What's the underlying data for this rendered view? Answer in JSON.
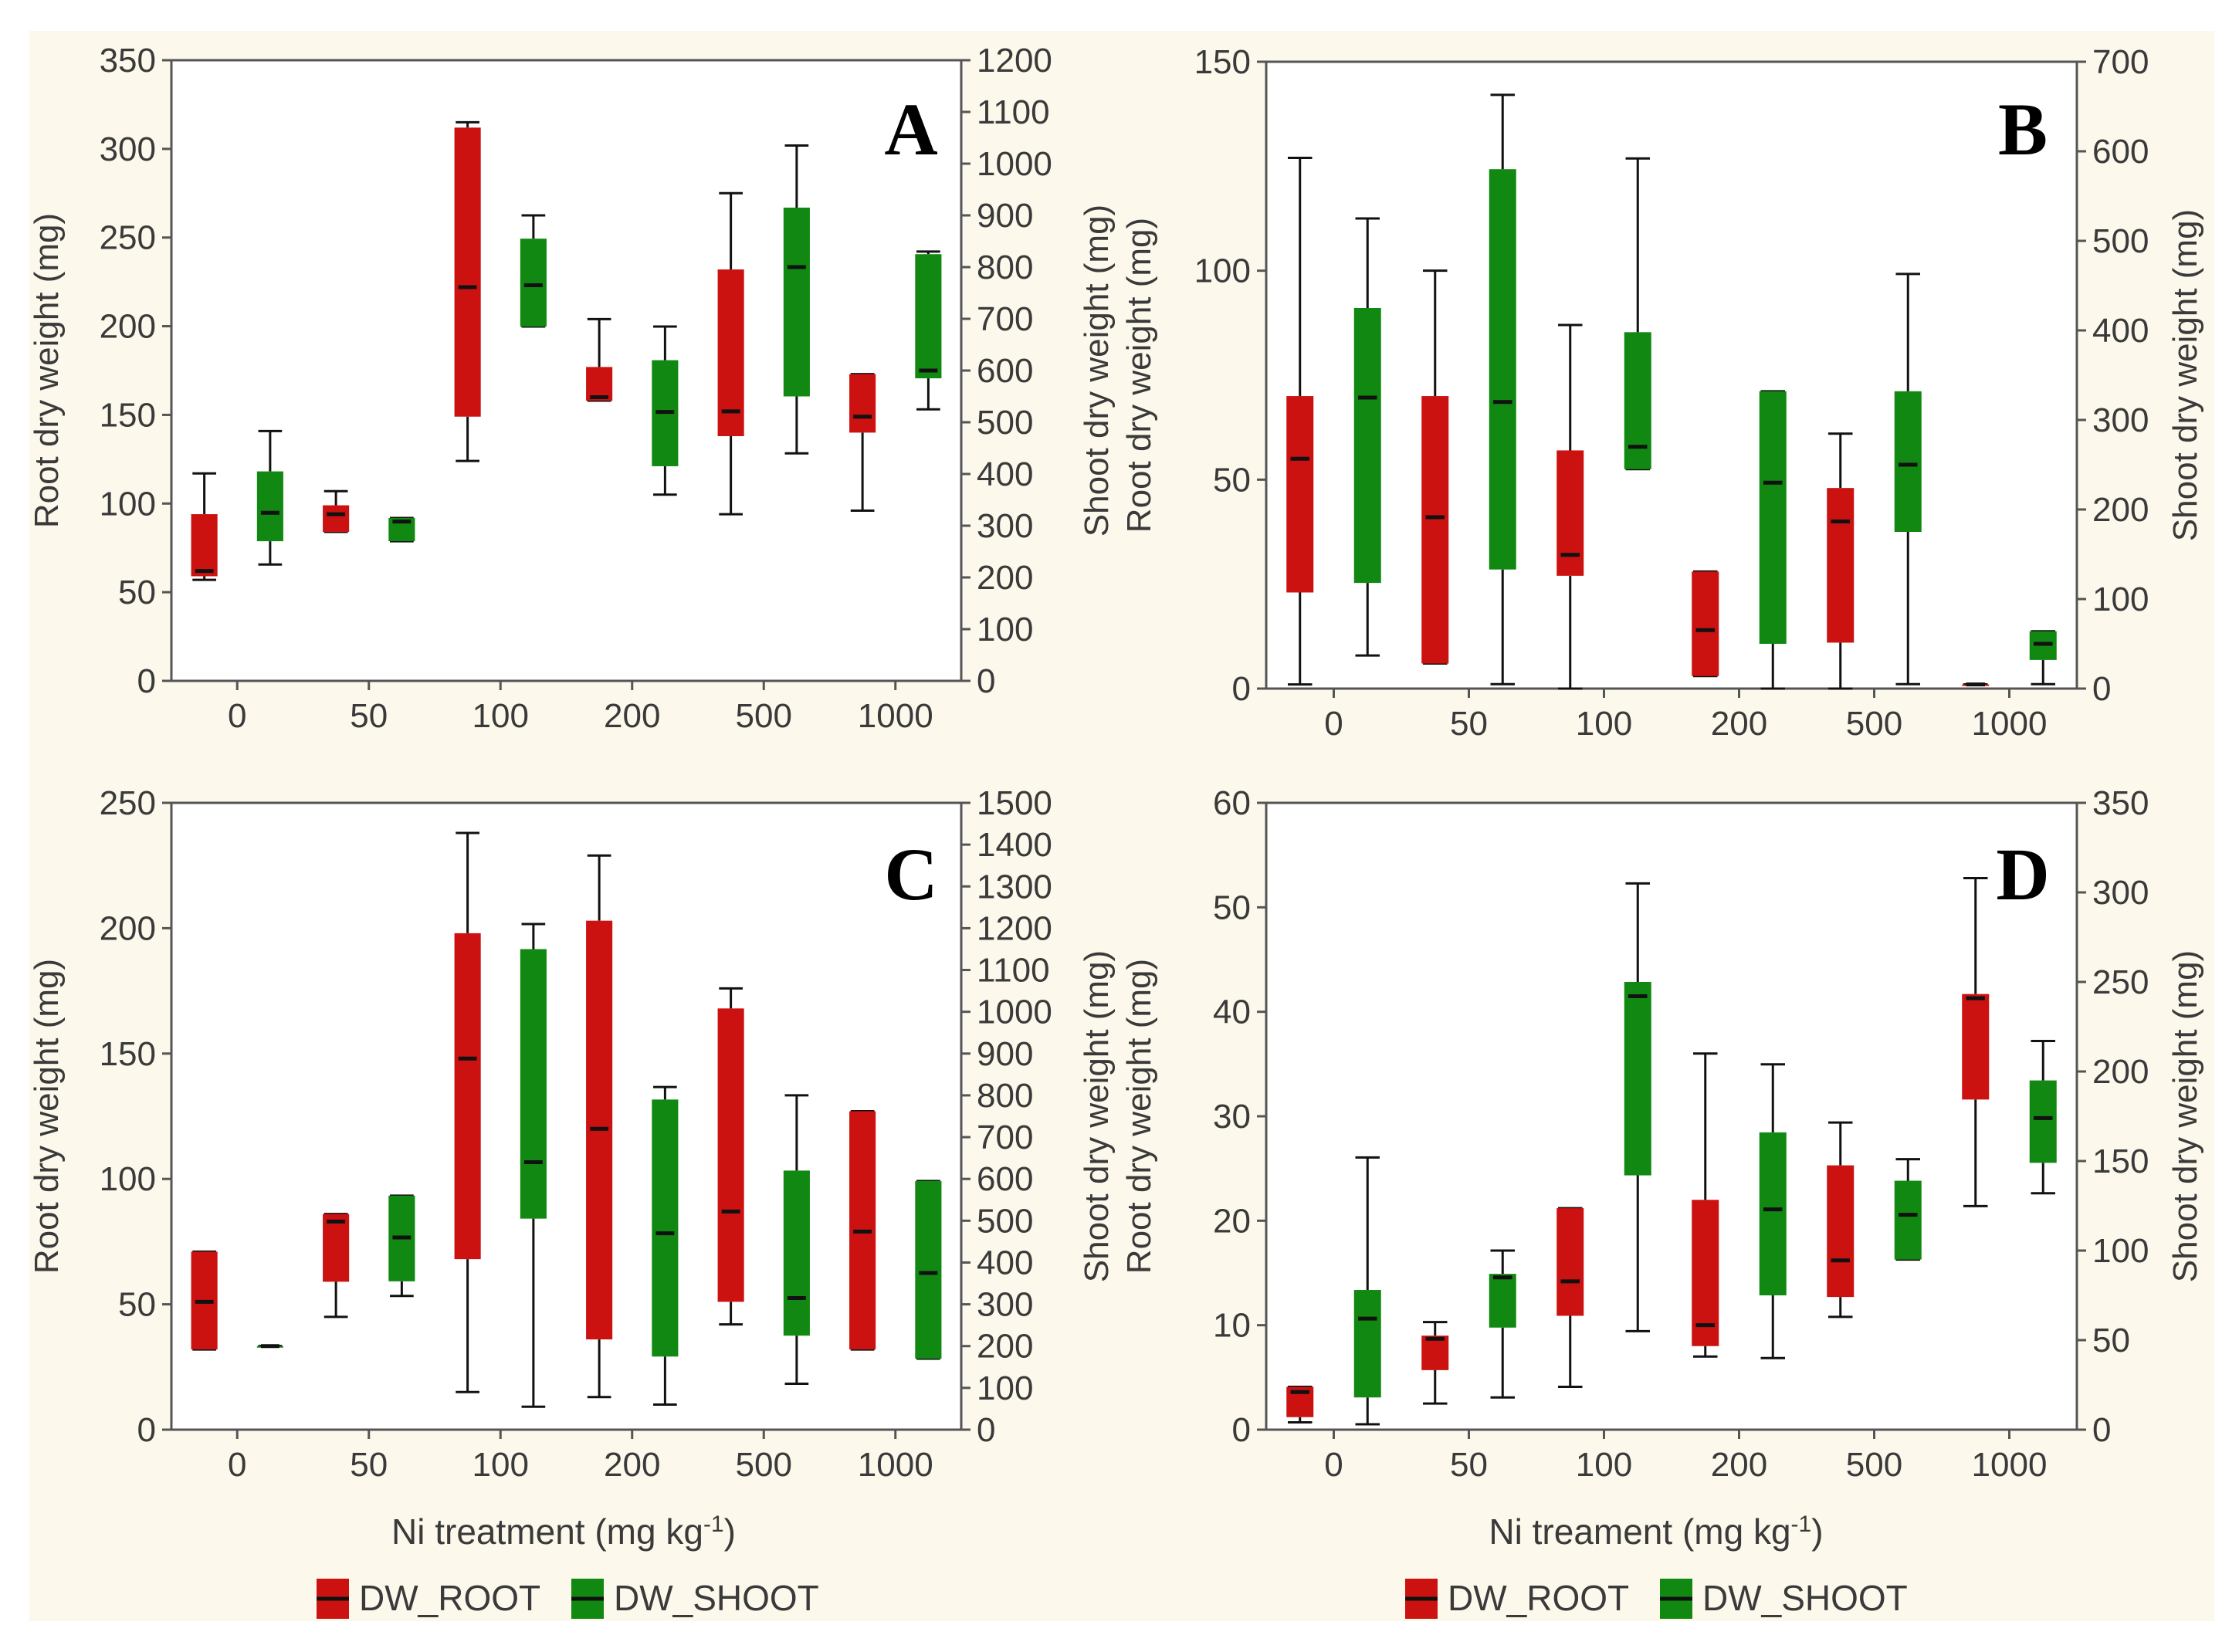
{
  "figure_background": "#fdf8ec",
  "colors": {
    "root": "#cc1111",
    "shoot": "#118811",
    "axis": "#555555",
    "text": "#3a3a3a"
  },
  "chart_data": [
    {
      "type": "boxplot",
      "panel_label": "A",
      "categories": [
        "0",
        "50",
        "100",
        "200",
        "500",
        "1000"
      ],
      "ylabel_left": "Root dry weight (mg)",
      "ylabel_right": "Shoot dry weight (mg)",
      "ylim_left": [
        0,
        350
      ],
      "ylim_right": [
        0,
        1200
      ],
      "yticks_left": [
        0,
        50,
        100,
        150,
        200,
        250,
        300,
        350
      ],
      "yticks_right": [
        0,
        100,
        200,
        300,
        400,
        500,
        600,
        700,
        800,
        900,
        1000,
        1100,
        1200
      ],
      "xlabel": "",
      "series": [
        {
          "name": "DW_ROOT",
          "axis": "left",
          "boxes": [
            {
              "min": 57,
              "q1": 59,
              "median": 62,
              "q3": 94,
              "max": 117
            },
            {
              "min": 84,
              "q1": 84,
              "median": 94,
              "q3": 99,
              "max": 107
            },
            {
              "min": 124,
              "q1": 149,
              "median": 222,
              "q3": 312,
              "max": 315
            },
            {
              "min": 158,
              "q1": 158,
              "median": 160,
              "q3": 177,
              "max": 204
            },
            {
              "min": 94,
              "q1": 138,
              "median": 152,
              "q3": 232,
              "max": 275
            },
            {
              "min": 96,
              "q1": 140,
              "median": 149,
              "q3": 173,
              "max": 173
            }
          ]
        },
        {
          "name": "DW_SHOOT",
          "axis": "right",
          "boxes": [
            {
              "min": 225,
              "q1": 270,
              "median": 325,
              "q3": 405,
              "max": 483
            },
            {
              "min": 270,
              "q1": 270,
              "median": 308,
              "q3": 315,
              "max": 315
            },
            {
              "min": 685,
              "q1": 685,
              "median": 765,
              "q3": 855,
              "max": 900
            },
            {
              "min": 360,
              "q1": 415,
              "median": 520,
              "q3": 620,
              "max": 685
            },
            {
              "min": 440,
              "q1": 550,
              "median": 800,
              "q3": 915,
              "max": 1035
            },
            {
              "min": 525,
              "q1": 585,
              "median": 600,
              "q3": 825,
              "max": 830
            }
          ]
        }
      ]
    },
    {
      "type": "boxplot",
      "panel_label": "B",
      "categories": [
        "0",
        "50",
        "100",
        "200",
        "500",
        "1000"
      ],
      "ylabel_left": "Root dry weight (mg)",
      "ylabel_right": "Shoot dry weight (mg)",
      "ylim_left": [
        0,
        150
      ],
      "ylim_right": [
        0,
        700
      ],
      "yticks_left": [
        0,
        50,
        100,
        150
      ],
      "yticks_right": [
        0,
        100,
        200,
        300,
        400,
        500,
        600,
        700
      ],
      "xlabel": "",
      "series": [
        {
          "name": "DW_ROOT",
          "axis": "left",
          "boxes": [
            {
              "min": 1,
              "q1": 23,
              "median": 55,
              "q3": 70,
              "max": 127
            },
            {
              "min": 6,
              "q1": 6,
              "median": 41,
              "q3": 70,
              "max": 100
            },
            {
              "min": 0,
              "q1": 27,
              "median": 32,
              "q3": 57,
              "max": 87
            },
            {
              "min": 3,
              "q1": 3,
              "median": 14,
              "q3": 28,
              "max": 28
            },
            {
              "min": 0,
              "q1": 11,
              "median": 40,
              "q3": 48,
              "max": 61
            },
            {
              "min": 1,
              "q1": 1,
              "median": 1,
              "q3": 1,
              "max": 1
            }
          ]
        },
        {
          "name": "DW_SHOOT",
          "axis": "right",
          "boxes": [
            {
              "min": 37,
              "q1": 118,
              "median": 325,
              "q3": 425,
              "max": 525
            },
            {
              "min": 5,
              "q1": 133,
              "median": 320,
              "q3": 580,
              "max": 663
            },
            {
              "min": 245,
              "q1": 245,
              "median": 270,
              "q3": 398,
              "max": 592
            },
            {
              "min": 0,
              "q1": 50,
              "median": 230,
              "q3": 332,
              "max": 332
            },
            {
              "min": 5,
              "q1": 175,
              "median": 250,
              "q3": 332,
              "max": 463
            },
            {
              "min": 5,
              "q1": 32,
              "median": 50,
              "q3": 64,
              "max": 64
            }
          ]
        }
      ]
    },
    {
      "type": "boxplot",
      "panel_label": "C",
      "categories": [
        "0",
        "50",
        "100",
        "200",
        "500",
        "1000"
      ],
      "ylabel_left": "Root dry weight (mg)",
      "ylabel_right": "Shoot dry weight (mg)",
      "ylim_left": [
        0,
        250
      ],
      "ylim_right": [
        0,
        1500
      ],
      "yticks_left": [
        0,
        50,
        100,
        150,
        200,
        250
      ],
      "yticks_right": [
        0,
        100,
        200,
        300,
        400,
        500,
        600,
        700,
        800,
        900,
        1000,
        1100,
        1200,
        1300,
        1400,
        1500
      ],
      "xlabel": "Ni treatment (mg kg-1)",
      "series": [
        {
          "name": "DW_ROOT",
          "axis": "left",
          "boxes": [
            {
              "min": 32,
              "q1": 32,
              "median": 51,
              "q3": 71,
              "max": 71
            },
            {
              "min": 45,
              "q1": 59,
              "median": 83,
              "q3": 86,
              "max": 86
            },
            {
              "min": 15,
              "q1": 68,
              "median": 148,
              "q3": 198,
              "max": 238
            },
            {
              "min": 13,
              "q1": 36,
              "median": 120,
              "q3": 203,
              "max": 229
            },
            {
              "min": 42,
              "q1": 51,
              "median": 87,
              "q3": 168,
              "max": 176
            },
            {
              "min": 32,
              "q1": 32,
              "median": 79,
              "q3": 127,
              "max": 127
            }
          ]
        },
        {
          "name": "DW_SHOOT",
          "axis": "right",
          "boxes": [
            {
              "min": 200,
              "q1": 200,
              "median": 200,
              "q3": 200,
              "max": 200
            },
            {
              "min": 320,
              "q1": 355,
              "median": 460,
              "q3": 560,
              "max": 560
            },
            {
              "min": 55,
              "q1": 505,
              "median": 640,
              "q3": 1150,
              "max": 1210
            },
            {
              "min": 60,
              "q1": 175,
              "median": 470,
              "q3": 790,
              "max": 820
            },
            {
              "min": 110,
              "q1": 225,
              "median": 315,
              "q3": 620,
              "max": 800
            },
            {
              "min": 170,
              "q1": 170,
              "median": 375,
              "q3": 595,
              "max": 595
            }
          ]
        }
      ]
    },
    {
      "type": "boxplot",
      "panel_label": "D",
      "categories": [
        "0",
        "50",
        "100",
        "200",
        "500",
        "1000"
      ],
      "ylabel_left": "Root dry weight (mg)",
      "ylabel_right": "Shoot dry weight (mg)",
      "ylim_left": [
        0,
        60
      ],
      "ylim_right": [
        0,
        350
      ],
      "yticks_left": [
        0,
        10,
        20,
        30,
        40,
        50,
        60
      ],
      "yticks_right": [
        0,
        50,
        100,
        150,
        200,
        250,
        300,
        350
      ],
      "xlabel": "Ni treament (mg kg-1)",
      "series": [
        {
          "name": "DW_ROOT",
          "axis": "left",
          "boxes": [
            {
              "min": 0.7,
              "q1": 1.2,
              "median": 3.6,
              "q3": 4.1,
              "max": 4.1
            },
            {
              "min": 2.5,
              "q1": 5.7,
              "median": 8.7,
              "q3": 9.0,
              "max": 10.3
            },
            {
              "min": 4.1,
              "q1": 10.9,
              "median": 14.2,
              "q3": 21.2,
              "max": 21.2
            },
            {
              "min": 7.0,
              "q1": 8.0,
              "median": 10.0,
              "q3": 22.0,
              "max": 36.0
            },
            {
              "min": 10.8,
              "q1": 12.7,
              "median": 16.2,
              "q3": 25.3,
              "max": 29.4
            },
            {
              "min": 21.4,
              "q1": 31.6,
              "median": 41.3,
              "q3": 41.7,
              "max": 52.8
            }
          ]
        },
        {
          "name": "DW_SHOOT",
          "axis": "right",
          "boxes": [
            {
              "min": 3,
              "q1": 18,
              "median": 62,
              "q3": 78,
              "max": 152
            },
            {
              "min": 18,
              "q1": 57,
              "median": 85,
              "q3": 87,
              "max": 100
            },
            {
              "min": 55,
              "q1": 142,
              "median": 242,
              "q3": 250,
              "max": 305
            },
            {
              "min": 40,
              "q1": 75,
              "median": 123,
              "q3": 166,
              "max": 204
            },
            {
              "min": 95,
              "q1": 95,
              "median": 120,
              "q3": 139,
              "max": 151
            },
            {
              "min": 132,
              "q1": 149,
              "median": 174,
              "q3": 195,
              "max": 217
            }
          ]
        }
      ]
    }
  ],
  "legend": {
    "root_label": "DW_ROOT",
    "shoot_label": "DW_SHOOT"
  },
  "xlabels": {
    "left": {
      "text": "Ni treatment (mg kg",
      "sup": "-1",
      "tail": ")"
    },
    "right": {
      "text": "Ni treament (mg kg",
      "sup": "-1",
      "tail": ")"
    }
  }
}
